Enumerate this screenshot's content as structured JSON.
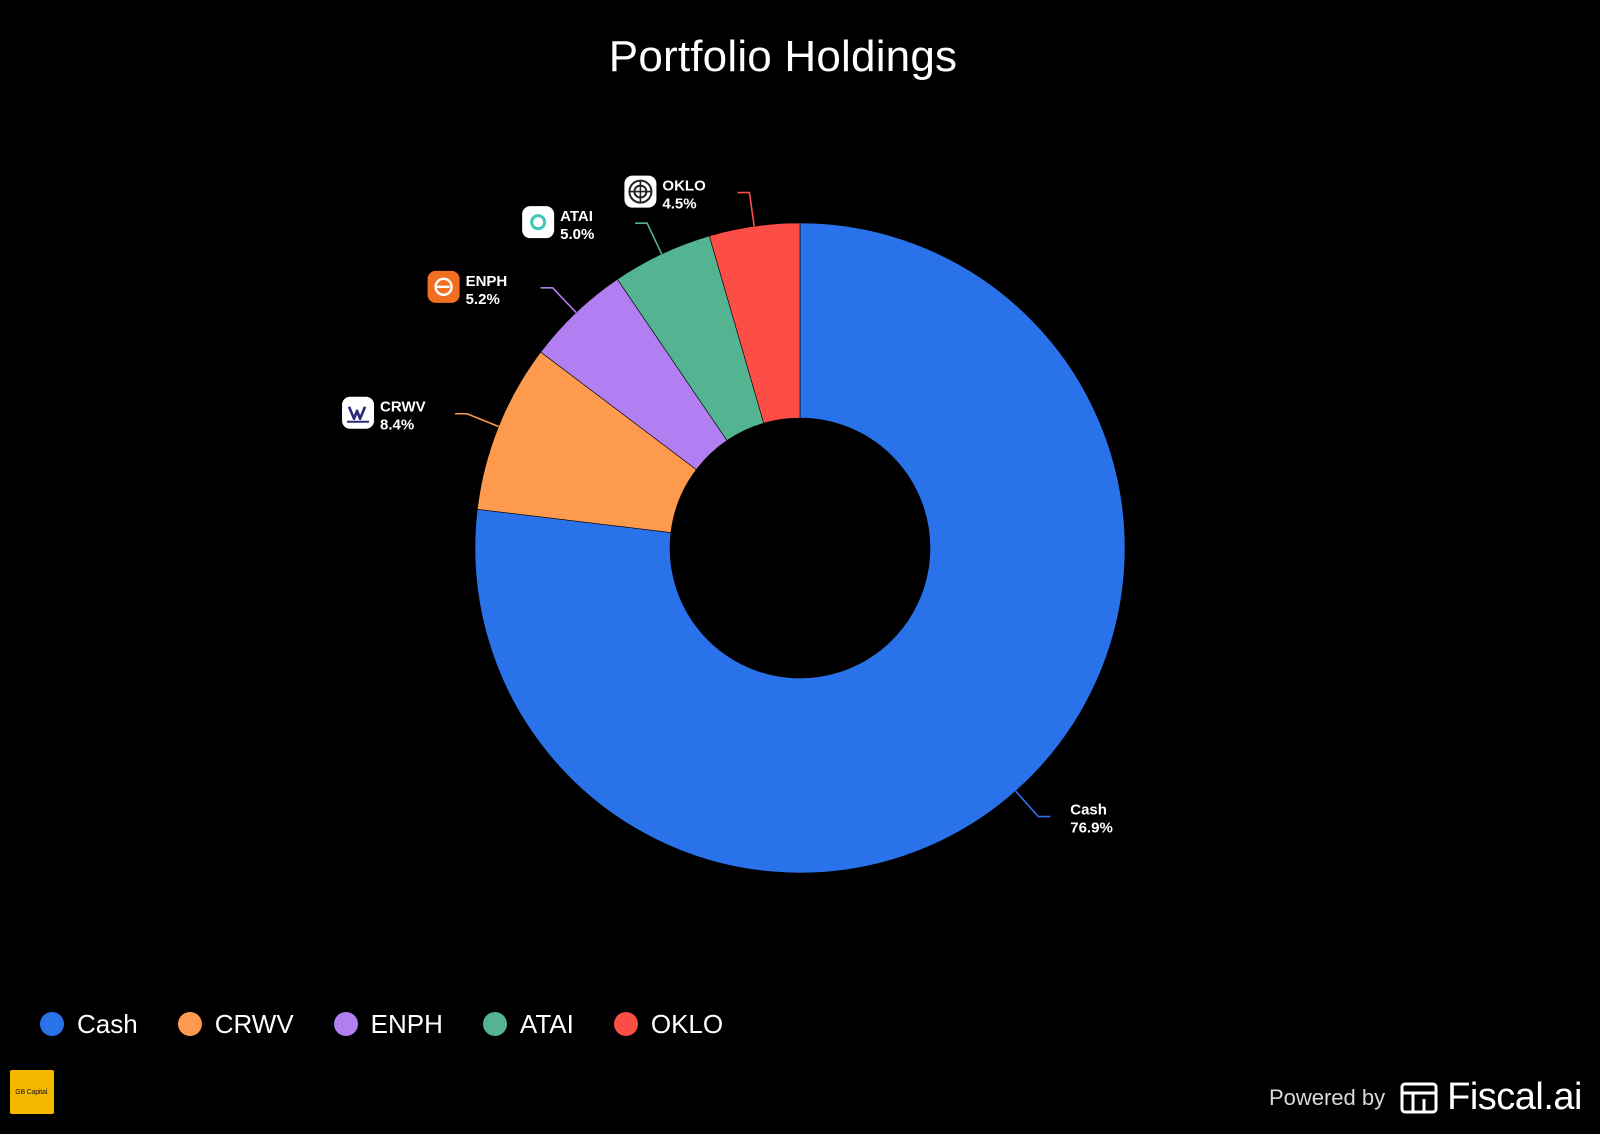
{
  "chart_data": {
    "type": "pie",
    "title": "Portfolio Holdings",
    "donut": true,
    "slices": [
      {
        "label": "Cash",
        "value": 76.9,
        "percent_label": "76.9%",
        "color": "#2a72ea",
        "icon": "none"
      },
      {
        "label": "CRWV",
        "value": 8.4,
        "percent_label": "8.4%",
        "color": "#fd9a4d",
        "icon": "coreweave-logo-icon"
      },
      {
        "label": "ENPH",
        "value": 5.2,
        "percent_label": "5.2%",
        "color": "#b27ff2",
        "icon": "enphase-logo-icon"
      },
      {
        "label": "ATAI",
        "value": 5.0,
        "percent_label": "5.0%",
        "color": "#54b492",
        "icon": "atai-logo-icon"
      },
      {
        "label": "OKLO",
        "value": 4.5,
        "percent_label": "4.5%",
        "color": "#fc4d47",
        "icon": "oklo-logo-icon"
      }
    ],
    "legend": {
      "placement": "bottom-left",
      "items": [
        "Cash",
        "CRWV",
        "ENPH",
        "ATAI",
        "OKLO"
      ]
    }
  },
  "footer": {
    "brand_badge": "GB Capital.",
    "powered_by": "Powered by",
    "powered_brand": "Fiscal.ai"
  }
}
